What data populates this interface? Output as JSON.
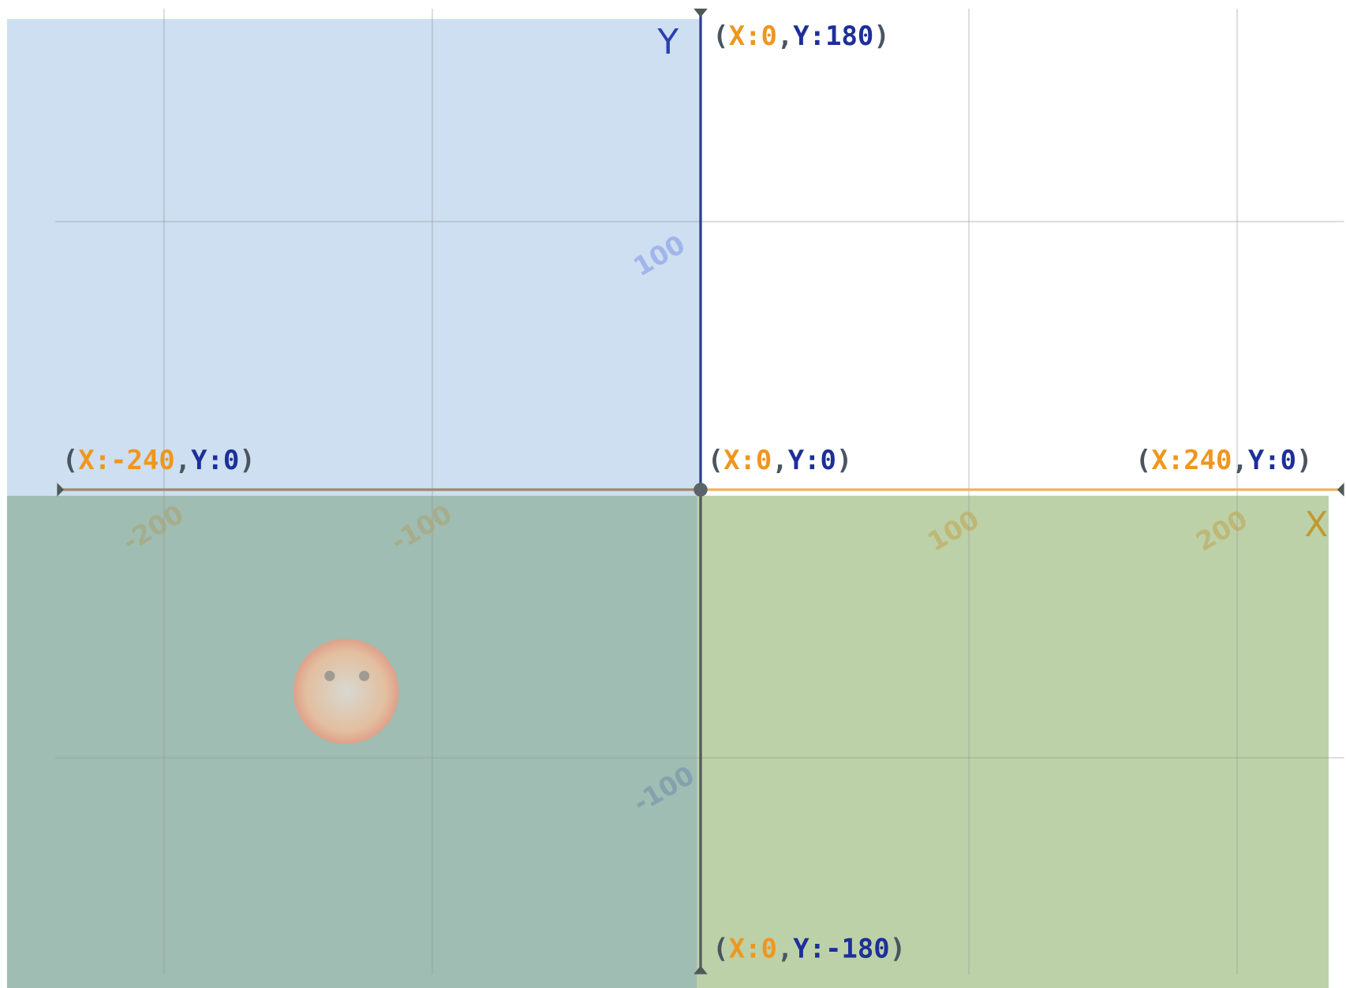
{
  "axes": {
    "x_label": "X",
    "y_label": "Y"
  },
  "x_ticks": [
    -200,
    -100,
    100,
    200
  ],
  "y_ticks": [
    100,
    -100
  ],
  "points": [
    {
      "parts": [
        "(",
        "X:0",
        ",",
        "Y:180",
        ")"
      ]
    },
    {
      "parts": [
        "(",
        "X:-240",
        ",",
        "Y:0",
        ")"
      ]
    },
    {
      "parts": [
        "(",
        "X:0",
        ",",
        "Y:0",
        ")"
      ]
    },
    {
      "parts": [
        "(",
        "X:240",
        ",",
        "Y:0",
        ")"
      ]
    },
    {
      "parts": [
        "(",
        "X:0",
        ",",
        "Y:-180",
        ")"
      ]
    }
  ]
}
